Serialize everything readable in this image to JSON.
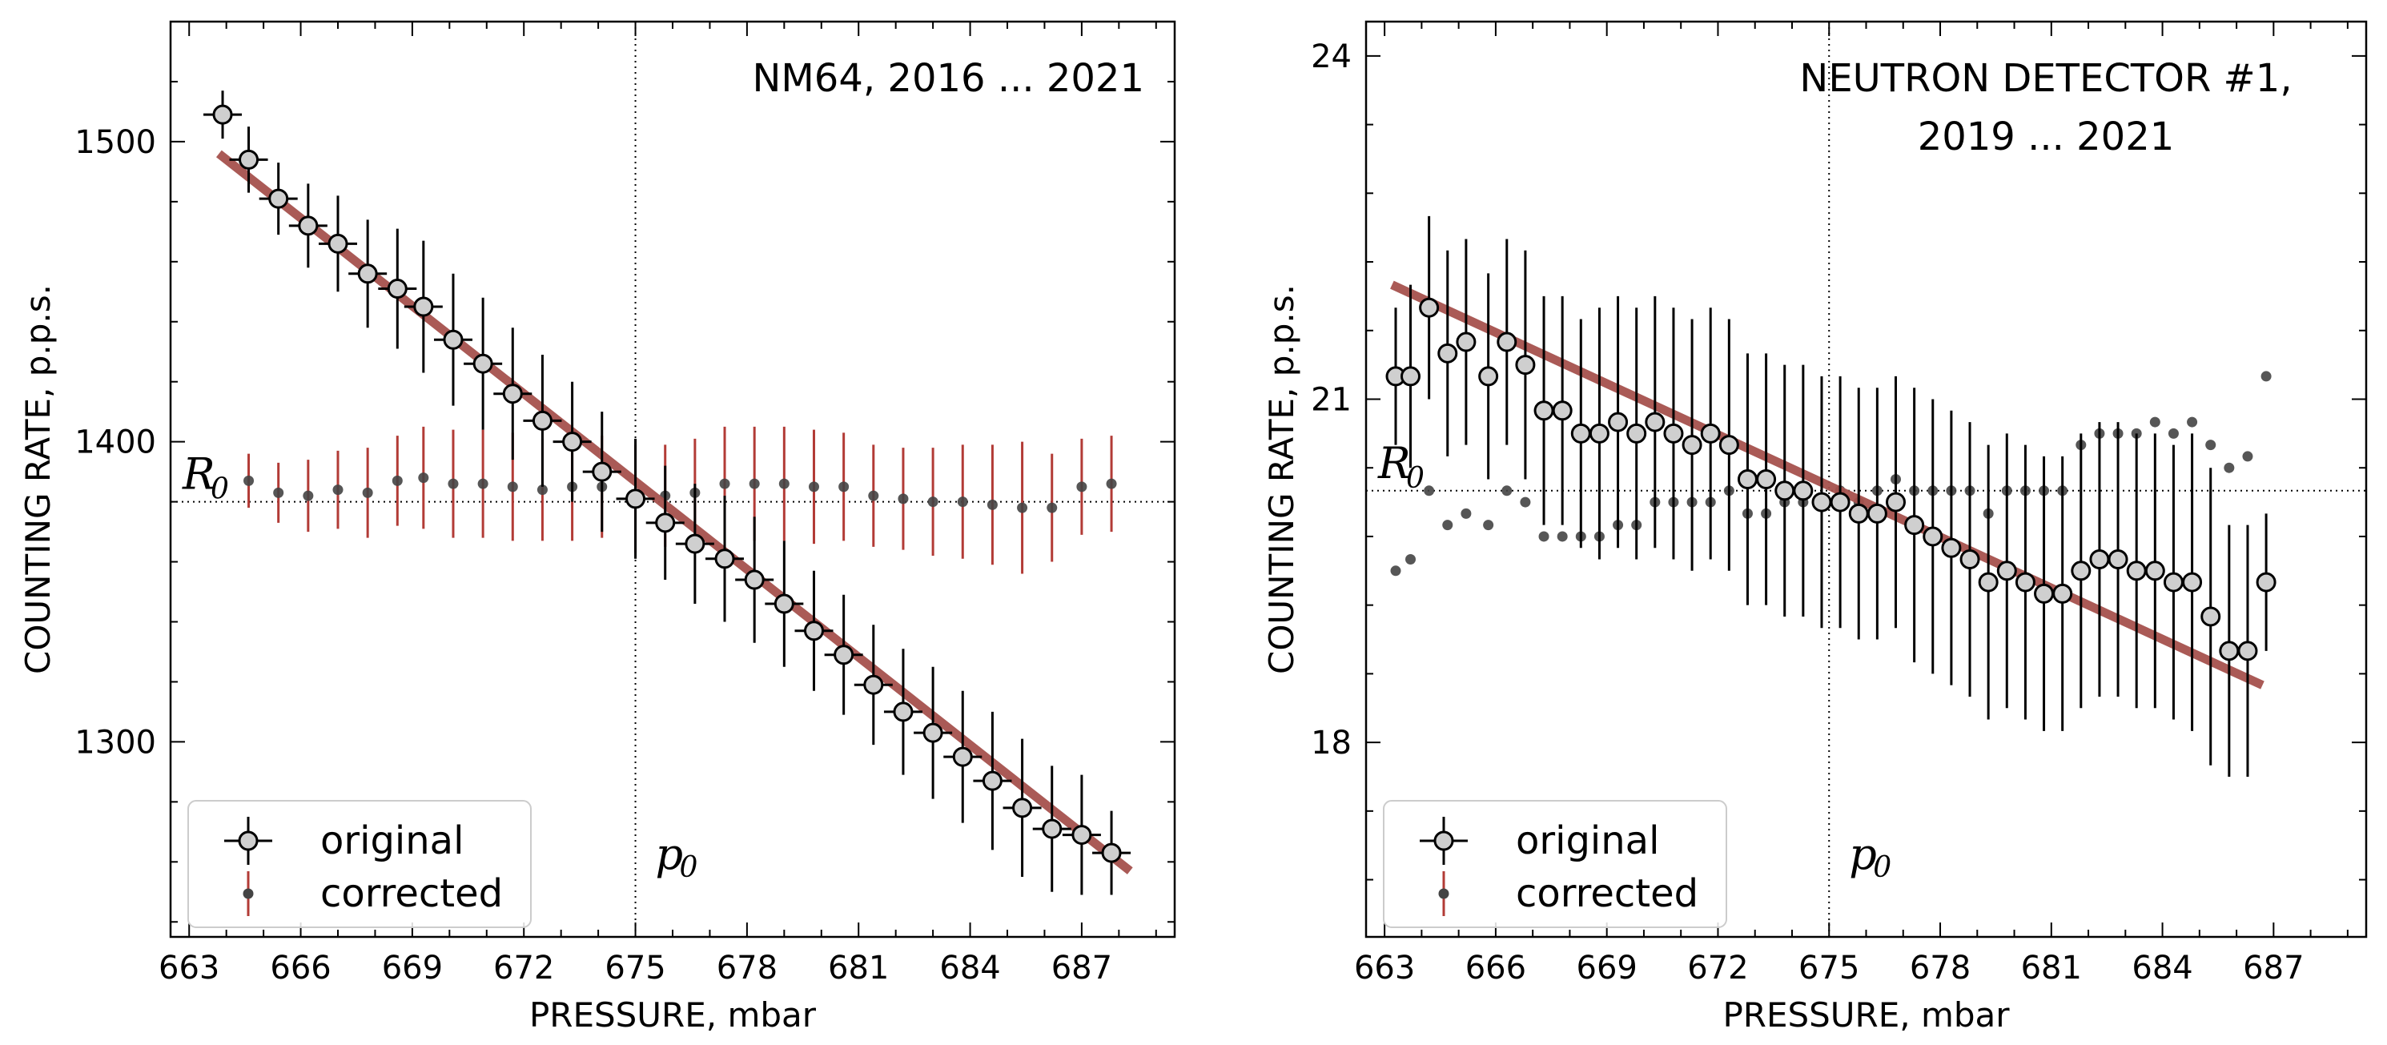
{
  "chart_data": [
    {
      "type": "scatter",
      "title_lines": [
        "NM64, 2016 ... 2021"
      ],
      "xlabel": "PRESSURE, mbar",
      "ylabel": "COUNTING RATE, p.p.s.",
      "xlim": [
        662.5,
        689.5
      ],
      "ylim": [
        1235,
        1540
      ],
      "xticks": [
        663,
        666,
        669,
        672,
        675,
        678,
        681,
        684,
        687
      ],
      "yticks": [
        1300,
        1400,
        1500
      ],
      "ref_x": 675,
      "ref_y": 1380,
      "ref_x_label": "p",
      "ref_y_label": "R",
      "ref_sub": "0",
      "legend": {
        "position": "lower-left",
        "entries": [
          "original",
          "corrected"
        ]
      },
      "fit_line": {
        "x": [
          663.8,
          688.3
        ],
        "y": [
          1496,
          1257
        ]
      },
      "series": [
        {
          "name": "original",
          "x": [
            663.9,
            664.6,
            665.4,
            666.2,
            667.0,
            667.8,
            668.6,
            669.3,
            670.1,
            670.9,
            671.7,
            672.5,
            673.3,
            674.1,
            675.0,
            675.8,
            676.6,
            677.4,
            678.2,
            679.0,
            679.8,
            680.6,
            681.4,
            682.2,
            683.0,
            683.8,
            684.6,
            685.4,
            686.2,
            687.0,
            687.8
          ],
          "y": [
            1509,
            1494,
            1481,
            1472,
            1466,
            1456,
            1451,
            1445,
            1434,
            1426,
            1416,
            1407,
            1400,
            1390,
            1381,
            1373,
            1366,
            1361,
            1354,
            1346,
            1337,
            1329,
            1319,
            1310,
            1303,
            1295,
            1287,
            1278,
            1271,
            1269,
            1263
          ],
          "err": [
            8,
            11,
            12,
            14,
            16,
            18,
            20,
            22,
            22,
            22,
            22,
            22,
            20,
            20,
            20,
            19,
            20,
            21,
            21,
            21,
            20,
            20,
            20,
            21,
            22,
            22,
            23,
            23,
            21,
            20,
            14
          ]
        },
        {
          "name": "corrected",
          "x": [
            664.6,
            665.4,
            666.2,
            667.0,
            667.8,
            668.6,
            669.3,
            670.1,
            670.9,
            671.7,
            672.5,
            673.3,
            674.1,
            675.0,
            675.8,
            676.6,
            677.4,
            678.2,
            679.0,
            679.8,
            680.6,
            681.4,
            682.2,
            683.0,
            683.8,
            684.6,
            685.4,
            686.2,
            687.0,
            687.8
          ],
          "y": [
            1387,
            1383,
            1382,
            1384,
            1383,
            1387,
            1388,
            1386,
            1386,
            1385,
            1384,
            1385,
            1385,
            1381,
            1382,
            1383,
            1386,
            1386,
            1386,
            1385,
            1385,
            1382,
            1381,
            1380,
            1380,
            1379,
            1378,
            1378,
            1385,
            1386
          ],
          "err": [
            9,
            10,
            12,
            13,
            15,
            15,
            17,
            18,
            18,
            18,
            17,
            18,
            17,
            18,
            17,
            18,
            19,
            19,
            19,
            19,
            18,
            17,
            17,
            18,
            19,
            20,
            22,
            18,
            16,
            16
          ]
        }
      ]
    },
    {
      "type": "scatter",
      "title_lines": [
        "NEUTRON DETECTOR #1,",
        "2019 ... 2021"
      ],
      "xlabel": "PRESSURE, mbar",
      "ylabel": "COUNTING RATE, p.p.s.",
      "xlim": [
        662.5,
        689.5
      ],
      "ylim": [
        16.3,
        24.3
      ],
      "xticks": [
        663,
        666,
        669,
        672,
        675,
        678,
        681,
        684,
        687
      ],
      "yticks": [
        18,
        21,
        24
      ],
      "ref_x": 675,
      "ref_y": 20.2,
      "ref_x_label": "p",
      "ref_y_label": "R",
      "ref_sub": "0",
      "legend": {
        "position": "lower-left",
        "entries": [
          "original",
          "corrected"
        ]
      },
      "fit_line": {
        "x": [
          663.2,
          686.7
        ],
        "y": [
          22.0,
          18.5
        ]
      },
      "series": [
        {
          "name": "original",
          "x": [
            663.3,
            663.7,
            664.2,
            664.7,
            665.2,
            665.8,
            666.3,
            666.8,
            667.3,
            667.8,
            668.3,
            668.8,
            669.3,
            669.8,
            670.3,
            670.8,
            671.3,
            671.8,
            672.3,
            672.8,
            673.3,
            673.8,
            674.3,
            674.8,
            675.3,
            675.8,
            676.3,
            676.8,
            677.3,
            677.8,
            678.3,
            678.8,
            679.3,
            679.8,
            680.3,
            680.8,
            681.3,
            681.8,
            682.3,
            682.8,
            683.3,
            683.8,
            684.3,
            684.8,
            685.3,
            685.8,
            686.3,
            686.8
          ],
          "y": [
            21.2,
            21.2,
            21.8,
            21.4,
            21.5,
            21.2,
            21.5,
            21.3,
            20.9,
            20.9,
            20.7,
            20.7,
            20.8,
            20.7,
            20.8,
            20.7,
            20.6,
            20.7,
            20.6,
            20.3,
            20.3,
            20.2,
            20.2,
            20.1,
            20.1,
            20.0,
            20.0,
            20.1,
            19.9,
            19.8,
            19.7,
            19.6,
            19.4,
            19.5,
            19.4,
            19.3,
            19.3,
            19.5,
            19.6,
            19.6,
            19.5,
            19.5,
            19.4,
            19.4,
            19.1,
            18.8,
            18.8,
            19.4
          ],
          "err": [
            0.6,
            0.8,
            0.8,
            0.9,
            0.9,
            0.9,
            0.9,
            1.0,
            1.0,
            1.0,
            1.0,
            1.1,
            1.1,
            1.1,
            1.1,
            1.1,
            1.1,
            1.1,
            1.1,
            1.1,
            1.1,
            1.1,
            1.1,
            1.1,
            1.1,
            1.1,
            1.1,
            1.1,
            1.2,
            1.2,
            1.2,
            1.2,
            1.2,
            1.2,
            1.2,
            1.2,
            1.2,
            1.2,
            1.2,
            1.2,
            1.2,
            1.2,
            1.2,
            1.3,
            1.3,
            1.1,
            1.1,
            0.6
          ]
        },
        {
          "name": "corrected",
          "x": [
            663.3,
            663.7,
            664.2,
            664.7,
            665.2,
            665.8,
            666.3,
            666.8,
            667.3,
            667.8,
            668.3,
            668.8,
            669.3,
            669.8,
            670.3,
            670.8,
            671.3,
            671.8,
            672.3,
            672.8,
            673.3,
            673.8,
            674.3,
            674.8,
            675.3,
            675.8,
            676.3,
            676.8,
            677.3,
            677.8,
            678.3,
            678.8,
            679.3,
            679.8,
            680.3,
            680.8,
            681.3,
            681.8,
            682.3,
            682.8,
            683.3,
            683.8,
            684.3,
            684.8,
            685.3,
            685.8,
            686.3,
            686.8
          ],
          "y": [
            19.5,
            19.6,
            20.2,
            19.9,
            20.0,
            19.9,
            20.2,
            20.1,
            19.8,
            19.8,
            19.8,
            19.8,
            19.9,
            19.9,
            20.1,
            20.1,
            20.1,
            20.1,
            20.2,
            20.0,
            20.0,
            20.1,
            20.1,
            20.1,
            20.2,
            20.1,
            20.2,
            20.3,
            20.2,
            20.2,
            20.2,
            20.2,
            20.0,
            20.2,
            20.2,
            20.2,
            20.2,
            20.6,
            20.7,
            20.7,
            20.7,
            20.8,
            20.7,
            20.8,
            20.6,
            20.4,
            20.5,
            21.2
          ]
        }
      ]
    }
  ]
}
